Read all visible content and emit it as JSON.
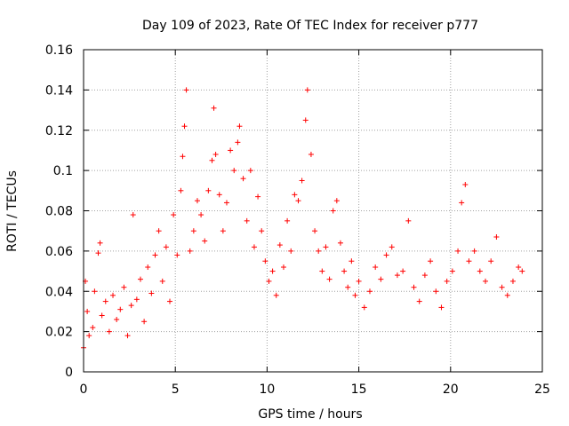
{
  "chart_data": {
    "type": "scatter",
    "title": "Day 109 of 2023, Rate Of TEC Index for receiver p777",
    "xlabel": "GPS time / hours",
    "ylabel": "ROTI / TECUs",
    "xlim": [
      0,
      25
    ],
    "ylim": [
      0,
      0.16
    ],
    "xticks": [
      0,
      5,
      10,
      15,
      20,
      25
    ],
    "yticks": [
      0,
      0.02,
      0.04,
      0.06,
      0.08,
      0.1,
      0.12,
      0.14,
      0.16
    ],
    "xtick_labels": [
      "0",
      "5",
      "10",
      "15",
      "20",
      "25"
    ],
    "ytick_labels": [
      "0",
      "0.02",
      "0.04",
      "0.06",
      "0.08",
      "0.1",
      "0.12",
      "0.14",
      "0.16"
    ],
    "grid": true,
    "marker": "+",
    "color": "#ff0000",
    "series": [
      {
        "points": [
          [
            0.0,
            0.012
          ],
          [
            0.1,
            0.045
          ],
          [
            0.2,
            0.03
          ],
          [
            0.3,
            0.018
          ],
          [
            0.5,
            0.022
          ],
          [
            0.6,
            0.04
          ],
          [
            0.8,
            0.059
          ],
          [
            0.9,
            0.064
          ],
          [
            1.0,
            0.028
          ],
          [
            1.2,
            0.035
          ],
          [
            1.4,
            0.02
          ],
          [
            1.6,
            0.038
          ],
          [
            1.8,
            0.026
          ],
          [
            2.0,
            0.031
          ],
          [
            2.2,
            0.042
          ],
          [
            2.4,
            0.018
          ],
          [
            2.6,
            0.033
          ],
          [
            2.7,
            0.078
          ],
          [
            2.9,
            0.036
          ],
          [
            3.1,
            0.046
          ],
          [
            3.3,
            0.025
          ],
          [
            3.5,
            0.052
          ],
          [
            3.7,
            0.039
          ],
          [
            3.9,
            0.058
          ],
          [
            4.1,
            0.07
          ],
          [
            4.3,
            0.045
          ],
          [
            4.5,
            0.062
          ],
          [
            4.7,
            0.035
          ],
          [
            4.9,
            0.078
          ],
          [
            5.1,
            0.058
          ],
          [
            5.3,
            0.09
          ],
          [
            5.4,
            0.107
          ],
          [
            5.5,
            0.122
          ],
          [
            5.6,
            0.14
          ],
          [
            5.8,
            0.06
          ],
          [
            6.0,
            0.07
          ],
          [
            6.2,
            0.085
          ],
          [
            6.4,
            0.078
          ],
          [
            6.6,
            0.065
          ],
          [
            6.8,
            0.09
          ],
          [
            7.0,
            0.105
          ],
          [
            7.1,
            0.131
          ],
          [
            7.2,
            0.108
          ],
          [
            7.4,
            0.088
          ],
          [
            7.6,
            0.07
          ],
          [
            7.8,
            0.084
          ],
          [
            8.0,
            0.11
          ],
          [
            8.2,
            0.1
          ],
          [
            8.4,
            0.114
          ],
          [
            8.5,
            0.122
          ],
          [
            8.7,
            0.096
          ],
          [
            8.9,
            0.075
          ],
          [
            9.1,
            0.1
          ],
          [
            9.3,
            0.062
          ],
          [
            9.5,
            0.087
          ],
          [
            9.7,
            0.07
          ],
          [
            9.9,
            0.055
          ],
          [
            10.1,
            0.045
          ],
          [
            10.3,
            0.05
          ],
          [
            10.5,
            0.038
          ],
          [
            10.7,
            0.063
          ],
          [
            10.9,
            0.052
          ],
          [
            11.1,
            0.075
          ],
          [
            11.3,
            0.06
          ],
          [
            11.5,
            0.088
          ],
          [
            11.7,
            0.085
          ],
          [
            11.9,
            0.095
          ],
          [
            12.1,
            0.125
          ],
          [
            12.2,
            0.14
          ],
          [
            12.4,
            0.108
          ],
          [
            12.6,
            0.07
          ],
          [
            12.8,
            0.06
          ],
          [
            13.0,
            0.05
          ],
          [
            13.2,
            0.062
          ],
          [
            13.4,
            0.046
          ],
          [
            13.6,
            0.08
          ],
          [
            13.8,
            0.085
          ],
          [
            14.0,
            0.064
          ],
          [
            14.2,
            0.05
          ],
          [
            14.4,
            0.042
          ],
          [
            14.6,
            0.055
          ],
          [
            14.8,
            0.038
          ],
          [
            15.0,
            0.045
          ],
          [
            15.3,
            0.032
          ],
          [
            15.6,
            0.04
          ],
          [
            15.9,
            0.052
          ],
          [
            16.2,
            0.046
          ],
          [
            16.5,
            0.058
          ],
          [
            16.8,
            0.062
          ],
          [
            17.1,
            0.048
          ],
          [
            17.4,
            0.05
          ],
          [
            17.7,
            0.075
          ],
          [
            18.0,
            0.042
          ],
          [
            18.3,
            0.035
          ],
          [
            18.6,
            0.048
          ],
          [
            18.9,
            0.055
          ],
          [
            19.2,
            0.04
          ],
          [
            19.5,
            0.032
          ],
          [
            19.8,
            0.045
          ],
          [
            20.1,
            0.05
          ],
          [
            20.4,
            0.06
          ],
          [
            20.6,
            0.084
          ],
          [
            20.8,
            0.093
          ],
          [
            21.0,
            0.055
          ],
          [
            21.3,
            0.06
          ],
          [
            21.6,
            0.05
          ],
          [
            21.9,
            0.045
          ],
          [
            22.2,
            0.055
          ],
          [
            22.5,
            0.067
          ],
          [
            22.8,
            0.042
          ],
          [
            23.1,
            0.038
          ],
          [
            23.4,
            0.045
          ],
          [
            23.7,
            0.052
          ],
          [
            23.9,
            0.05
          ]
        ]
      }
    ]
  }
}
